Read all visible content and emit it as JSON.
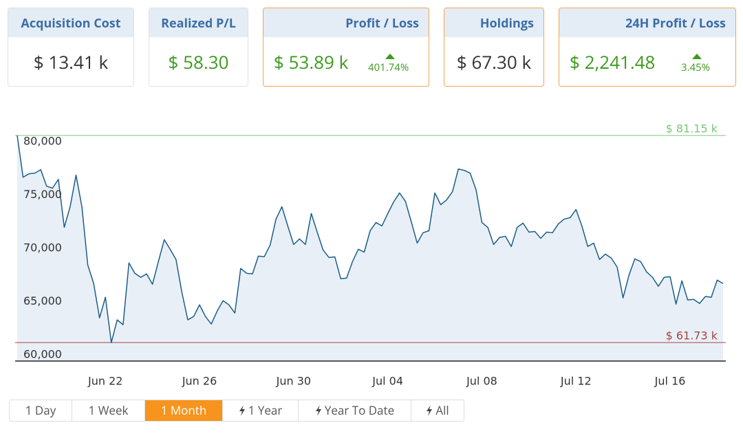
{
  "cards": [
    {
      "title": "Acquisition Cost",
      "value": "$ 13.41 k"
    },
    {
      "title": "Realized P/L",
      "value": "$ 58.30"
    },
    {
      "title": "Profit / Loss",
      "value": "$ 53.89 k",
      "change": "401.74%"
    },
    {
      "title": "Holdings",
      "value": "$ 67.30 k"
    },
    {
      "title": "24H Profit / Loss",
      "value": "$ 2,241.48",
      "change": "3.45%"
    }
  ],
  "chart_data": {
    "type": "area",
    "color": "#1b5e87",
    "fill": "#e8eff7",
    "categories": [
      null,
      null,
      null,
      null,
      null,
      null,
      null,
      null,
      null,
      null,
      null,
      null,
      null,
      null,
      null,
      "Jun 22",
      null,
      null,
      null,
      null,
      null,
      null,
      null,
      null,
      null,
      null,
      null,
      null,
      null,
      null,
      null,
      "Jun 26",
      null,
      null,
      null,
      null,
      null,
      null,
      null,
      null,
      null,
      null,
      null,
      null,
      null,
      null,
      null,
      "Jun 30",
      null,
      null,
      null,
      null,
      null,
      null,
      null,
      null,
      null,
      null,
      null,
      null,
      null,
      null,
      null,
      "Jul 04",
      null,
      null,
      null,
      null,
      null,
      null,
      null,
      null,
      null,
      null,
      null,
      null,
      null,
      null,
      null,
      "Jul 08",
      null,
      null,
      null,
      null,
      null,
      null,
      null,
      null,
      null,
      null,
      null,
      null,
      null,
      null,
      null,
      "Jul 12",
      null,
      null,
      null,
      null,
      null,
      null,
      null,
      null,
      null,
      null,
      null,
      null,
      null,
      null,
      null,
      "Jul 16",
      null,
      null,
      null,
      null,
      null,
      null,
      null,
      null,
      null
    ],
    "values": [
      81150,
      77230,
      77560,
      77620,
      77940,
      76400,
      76210,
      77040,
      72540,
      74470,
      77430,
      74470,
      69000,
      67270,
      64050,
      65980,
      61730,
      63860,
      63410,
      69200,
      68230,
      67850,
      68170,
      67200,
      69320,
      71380,
      70480,
      69520,
      66430,
      63860,
      64180,
      65270,
      64180,
      63470,
      64690,
      65660,
      65270,
      64500,
      68680,
      68230,
      68170,
      69840,
      69780,
      70870,
      73310,
      74470,
      72670,
      70930,
      71450,
      70930,
      73830,
      72090,
      70420,
      69710,
      69770,
      67720,
      67780,
      69320,
      70480,
      70220,
      72220,
      72990,
      72670,
      73830,
      74920,
      75760,
      74980,
      73050,
      71060,
      72030,
      72220,
      75760,
      74660,
      75110,
      75880,
      78010,
      77880,
      77620,
      76080,
      72990,
      72540,
      70930,
      71580,
      71700,
      70740,
      72540,
      72930,
      72090,
      72150,
      71510,
      72090,
      72030,
      72860,
      73310,
      73440,
      74210,
      72670,
      70740,
      71060,
      69520,
      70030,
      69650,
      68810,
      65920,
      68040,
      69580,
      69320,
      68360,
      67850,
      67010,
      67850,
      67910,
      65340,
      67520,
      65720,
      65790,
      65400,
      66050,
      65980,
      67590,
      67270
    ],
    "ylim": [
      60000,
      81150
    ],
    "yticks": [
      {
        "value": 60000,
        "label": "60,000"
      },
      {
        "value": 65000,
        "label": "65,000"
      },
      {
        "value": 70000,
        "label": "70,000"
      },
      {
        "value": 75000,
        "label": "75,000"
      },
      {
        "value": 80000,
        "label": "80,000"
      }
    ],
    "reference_lines": [
      {
        "value": 81150,
        "label": "$ 81.15 k",
        "color": "#7cc47c"
      },
      {
        "value": 61730,
        "label": "$ 61.73 k",
        "color": "#a94442"
      }
    ]
  },
  "range_buttons": [
    "1 Day",
    "1 Week",
    "1 Month",
    "1 Year",
    "Year To Date",
    "All"
  ]
}
